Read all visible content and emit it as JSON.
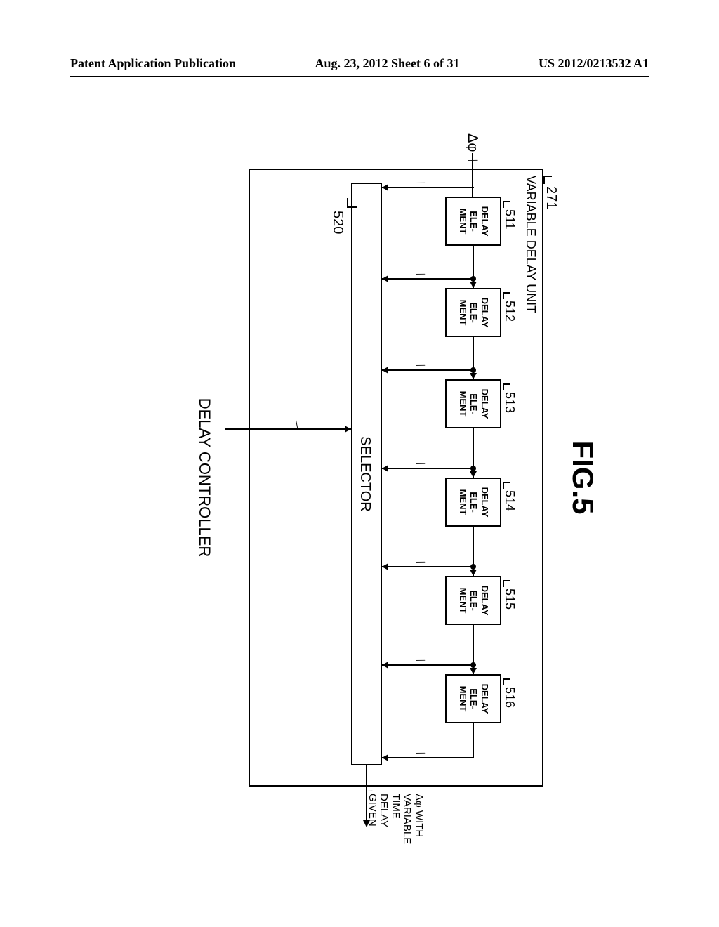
{
  "header": {
    "left": "Patent Application Publication",
    "center": "Aug. 23, 2012  Sheet 6 of 31",
    "right": "US 2012/0213532 A1"
  },
  "figure": {
    "title": "FIG.5",
    "unit_ref": "271",
    "unit_label": "VARIABLE DELAY UNIT",
    "input_label": "Δφ",
    "delay_elements": [
      {
        "ref": "511",
        "label_l1": "DELAY",
        "label_l2": "ELE-",
        "label_l3": "MENT"
      },
      {
        "ref": "512",
        "label_l1": "DELAY",
        "label_l2": "ELE-",
        "label_l3": "MENT"
      },
      {
        "ref": "513",
        "label_l1": "DELAY",
        "label_l2": "ELE-",
        "label_l3": "MENT"
      },
      {
        "ref": "514",
        "label_l1": "DELAY",
        "label_l2": "ELE-",
        "label_l3": "MENT"
      },
      {
        "ref": "515",
        "label_l1": "DELAY",
        "label_l2": "ELE-",
        "label_l3": "MENT"
      },
      {
        "ref": "516",
        "label_l1": "DELAY",
        "label_l2": "ELE-",
        "label_l3": "MENT"
      }
    ],
    "selector_label": "SELECTOR",
    "selector_ref": "520",
    "controller_label": "DELAY CONTROLLER",
    "output_label_l1": "Δφ WITH",
    "output_label_l2": "VARIABLE",
    "output_label_l3": "TIME",
    "output_label_l4": "DELAY",
    "output_label_l5": "GIVEN"
  },
  "layout": {
    "delay_x_positions": [
      110,
      240,
      370,
      510,
      650,
      790
    ],
    "delay_width": 70,
    "conn_gap": 60
  }
}
